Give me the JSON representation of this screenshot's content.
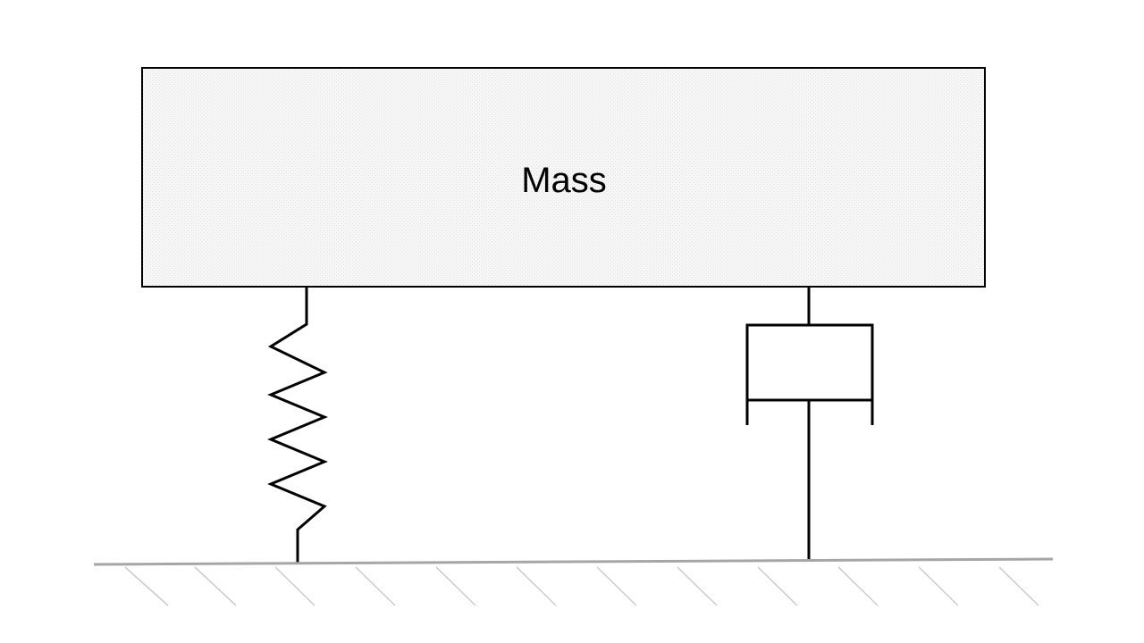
{
  "mass": {
    "label": "Mass"
  }
}
